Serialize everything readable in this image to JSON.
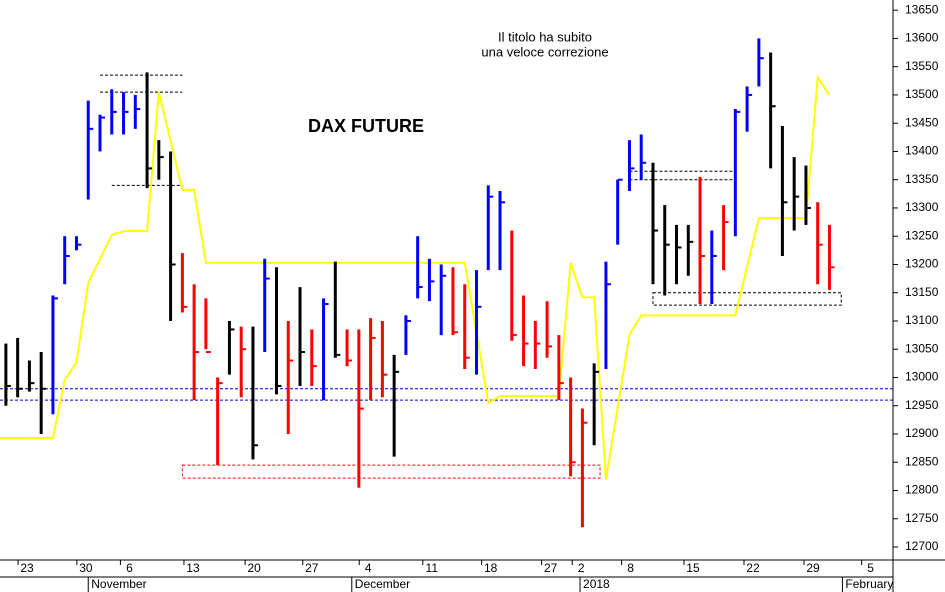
{
  "chart_data": {
    "type": "ohlc",
    "title": "DAX FUTURE",
    "annotation": [
      "Il titolo ha subito",
      "una veloce correzione"
    ],
    "annotation_color": "#ff0000",
    "xlim": [
      -0.5,
      75.4
    ],
    "ylim": [
      12677,
      13668
    ],
    "yticks": [
      12700,
      12750,
      12800,
      12850,
      12900,
      12950,
      13000,
      13050,
      13100,
      13150,
      13200,
      13250,
      13300,
      13350,
      13400,
      13450,
      13500,
      13550,
      13600,
      13650
    ],
    "xticks": [
      {
        "value": 1.8,
        "label": "23"
      },
      {
        "value": 6.8,
        "label": "30"
      },
      {
        "value": 10.5,
        "label": "6"
      },
      {
        "value": 15.9,
        "label": "13"
      },
      {
        "value": 21.1,
        "label": "20"
      },
      {
        "value": 26,
        "label": "27"
      },
      {
        "value": 30.8,
        "label": "4"
      },
      {
        "value": 36.2,
        "label": "11"
      },
      {
        "value": 41.2,
        "label": "18"
      },
      {
        "value": 46.3,
        "label": "27"
      },
      {
        "value": 48.9,
        "label": "2"
      },
      {
        "value": 53.1,
        "label": "8"
      },
      {
        "value": 58.4,
        "label": "15"
      },
      {
        "value": 63.5,
        "label": "22"
      },
      {
        "value": 68.6,
        "label": "29"
      },
      {
        "value": 73.5,
        "label": "5"
      }
    ],
    "month_ticks": [
      {
        "value": 7,
        "label": "November"
      },
      {
        "value": 29.4,
        "label": "December"
      },
      {
        "value": 48.8,
        "label": "2018"
      },
      {
        "value": 71.1,
        "label": "February"
      }
    ],
    "high": [
      13060,
      13070,
      13030,
      13045,
      13145,
      13250,
      13250,
      13490,
      13465,
      13510,
      13505,
      13500,
      13540,
      13420,
      13400,
      13220,
      13165,
      13140,
      13000,
      13100,
      13090,
      13090,
      13210,
      13195,
      13100,
      13160,
      13085,
      13140,
      13205,
      13085,
      13085,
      13105,
      13100,
      13040,
      13110,
      13250,
      13210,
      13200,
      13195,
      13165,
      13190,
      13340,
      13330,
      13260,
      13145,
      13100,
      13135,
      13075,
      13000,
      12945,
      13025,
      13205,
      13350,
      13420,
      13430,
      13380,
      13305,
      13270,
      13270,
      13355,
      13260,
      13305,
      13475,
      13515,
      13600,
      13575,
      13445,
      13390,
      13375,
      13310,
      13270
    ],
    "low": [
      12950,
      12965,
      12975,
      12900,
      12935,
      13165,
      13225,
      13315,
      13400,
      13430,
      13430,
      13440,
      13335,
      13350,
      13100,
      13115,
      12960,
      13050,
      12845,
      13005,
      12965,
      12855,
      13045,
      12970,
      12900,
      12985,
      12985,
      12960,
      13035,
      13020,
      12805,
      12960,
      12965,
      12860,
      13040,
      13140,
      13135,
      13075,
      13075,
      13015,
      13005,
      13190,
      13190,
      13065,
      13020,
      13015,
      13035,
      12960,
      12825,
      12735,
      12880,
      13015,
      13235,
      13330,
      13350,
      13165,
      13145,
      13165,
      13180,
      13130,
      13130,
      13190,
      13250,
      13435,
      13515,
      13370,
      13215,
      13260,
      13270,
      13165,
      13155
    ],
    "close": [
      12985,
      12980,
      12990,
      12980,
      13140,
      13215,
      13235,
      13440,
      13460,
      13470,
      13470,
      13475,
      13370,
      13390,
      13200,
      13125,
      13045,
      13045,
      12990,
      13085,
      13050,
      12880,
      13175,
      12985,
      13030,
      13045,
      13020,
      13130,
      13040,
      13030,
      12945,
      13070,
      13005,
      13010,
      13100,
      13160,
      13170,
      13180,
      13080,
      13035,
      13125,
      13320,
      13310,
      13075,
      13060,
      13060,
      13055,
      12990,
      12850,
      12920,
      13010,
      13165,
      13350,
      13370,
      13380,
      13260,
      13235,
      13230,
      13240,
      13215,
      13215,
      13275,
      13470,
      13500,
      13565,
      13480,
      13310,
      13320,
      13300,
      13235,
      13195
    ],
    "colors": [
      "#000000",
      "#000000",
      "#000000",
      "#000000",
      "#0000ff",
      "#0000ff",
      "#0000ff",
      "#0000ff",
      "#0000ff",
      "#0000ff",
      "#0000ff",
      "#0000ff",
      "#000000",
      "#000000",
      "#000000",
      "#ff0000",
      "#ff0000",
      "#ff0000",
      "#ff0000",
      "#000000",
      "#ff0000",
      "#000000",
      "#0000ff",
      "#000000",
      "#ff0000",
      "#000000",
      "#ff0000",
      "#0000ff",
      "#000000",
      "#ff0000",
      "#ff0000",
      "#ff0000",
      "#ff0000",
      "#000000",
      "#0000ff",
      "#0000ff",
      "#0000ff",
      "#0000ff",
      "#ff0000",
      "#ff0000",
      "#0000ff",
      "#0000ff",
      "#0000ff",
      "#ff0000",
      "#ff0000",
      "#ff0000",
      "#ff0000",
      "#ff0000",
      "#ff0000",
      "#ff0000",
      "#000000",
      "#0000ff",
      "#0000ff",
      "#0000ff",
      "#0000ff",
      "#000000",
      "#000000",
      "#000000",
      "#000000",
      "#ff0000",
      "#0000ff",
      "#ff0000",
      "#0000ff",
      "#0000ff",
      "#0000ff",
      "#000000",
      "#000000",
      "#000000",
      "#000000",
      "#ff0000",
      "#ff0000"
    ],
    "line": {
      "color": "#ffff00",
      "x": [
        -0.5,
        4,
        5,
        6,
        7,
        9,
        10,
        12,
        13,
        15,
        16,
        17,
        39,
        41,
        42,
        47,
        48,
        49,
        50,
        51,
        53,
        54,
        62,
        64,
        68,
        69,
        70
      ],
      "values": [
        12893,
        12893,
        12995,
        13027,
        13167,
        13252,
        13259,
        13259,
        13505,
        13332,
        13332,
        13203,
        13203,
        12955,
        12967,
        12967,
        13203,
        13142,
        13142,
        12819,
        13075,
        13110,
        13110,
        13282,
        13282,
        13531,
        13500
      ]
    },
    "hlines": [
      {
        "value": 12980,
        "color": "#0000cc"
      },
      {
        "value": 12960,
        "color": "#0000cc"
      }
    ],
    "segments": [
      {
        "x": [
          8,
          15
        ],
        "value": 13535
      },
      {
        "x": [
          8,
          15
        ],
        "value": 13505
      },
      {
        "x": [
          9,
          15
        ],
        "value": 13340
      },
      {
        "x": [
          53,
          62
        ],
        "value": 13365
      },
      {
        "x": [
          53,
          62
        ],
        "value": 13350
      }
    ],
    "boxes": [
      {
        "x": [
          15,
          50.5
        ],
        "ylim": [
          12822,
          12845
        ],
        "color": "#ff0000"
      },
      {
        "x": [
          55,
          71
        ],
        "ylim": [
          13128,
          13150
        ],
        "color": "#000000"
      }
    ]
  }
}
